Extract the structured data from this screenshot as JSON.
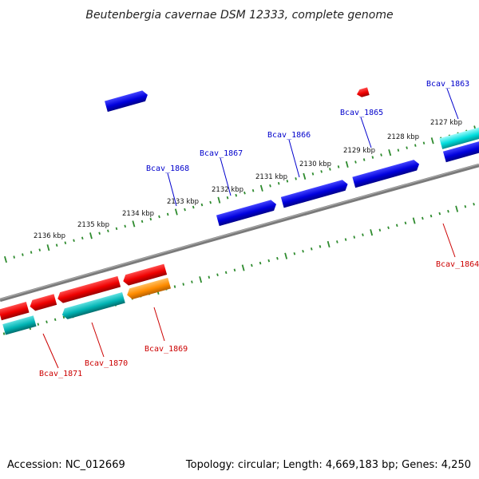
{
  "title": "Beutenbergia cavernae DSM 12333, complete genome",
  "footer": {
    "accession": "Accession: NC_012669",
    "summary": "Topology: circular; Length: 4,669,183 bp; Genes: 4,250"
  },
  "colors": {
    "forward_cds": "#0000dd",
    "reverse_cds": "#ee0000",
    "forward_rna": "#00dddd",
    "reverse_rna": "#00b3b3",
    "reverse_orange": "#ff8c00",
    "forward_gray": "#a9a9a9",
    "backbone": "#777777",
    "tick": "#2e8b2e",
    "forward_label": "#0000cc",
    "reverse_label": "#cc0000"
  },
  "tick_labels": [
    "2127 kbp",
    "2128 kbp",
    "2129 kbp",
    "2130 kbp",
    "2131 kbp",
    "2132 kbp",
    "2133 kbp",
    "2134 kbp",
    "2135 kbp",
    "2136 kbp"
  ],
  "gene_labels": {
    "forward": [
      "Bcav_1863",
      "Bcav_1865",
      "Bcav_1866",
      "Bcav_1867",
      "Bcav_1868"
    ],
    "reverse": [
      "Bcav_1864",
      "Bcav_1869",
      "Bcav_1870",
      "Bcav_1871"
    ]
  }
}
